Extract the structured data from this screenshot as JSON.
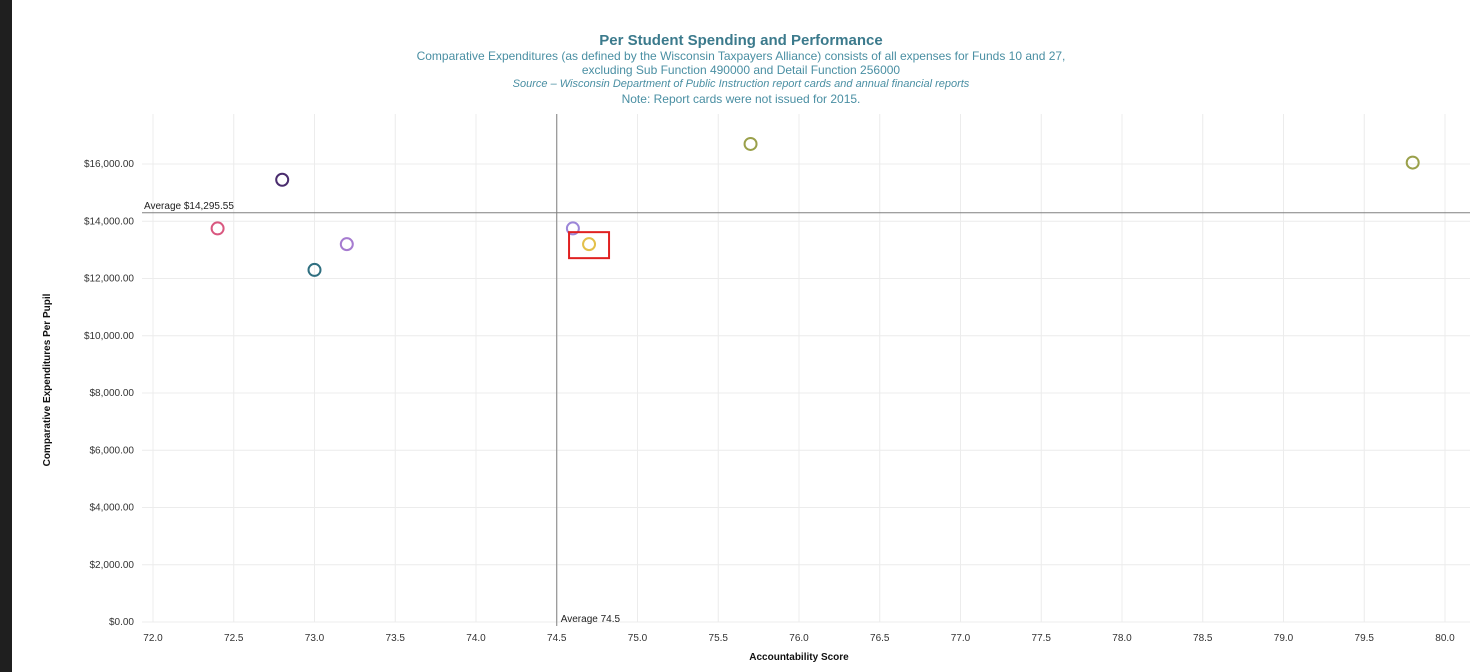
{
  "header": {
    "title": "Per Student Spending and Performance",
    "subtitle_line1": "Comparative Expenditures (as defined by the Wisconsin Taxpayers Alliance) consists of all expenses for Funds 10 and 27,",
    "subtitle_line2": "excluding Sub Function 490000 and Detail Function 256000",
    "source": "Source – Wisconsin Department of Public Instruction report cards and annual financial reports",
    "note": "Note: Report cards were not issued for 2015."
  },
  "chart_data": {
    "type": "scatter",
    "title": "Per Student Spending and Performance",
    "xlabel": "Accountability Score",
    "ylabel": "Comparative Expenditures Per Pupil",
    "xlim": [
      72.0,
      80.0
    ],
    "ylim": [
      0,
      16000
    ],
    "x_ticks": [
      "72.0",
      "72.5",
      "73.0",
      "73.5",
      "74.0",
      "74.5",
      "75.0",
      "75.5",
      "76.0",
      "76.5",
      "77.0",
      "77.5",
      "78.0",
      "78.5",
      "79.0",
      "79.5",
      "80.0"
    ],
    "y_ticks": [
      "$0.00",
      "$2,000.00",
      "$4,000.00",
      "$6,000.00",
      "$8,000.00",
      "$10,000.00",
      "$12,000.00",
      "$14,000.00",
      "$16,000.00"
    ],
    "grid": true,
    "average_lines": {
      "y_value": 14295.55,
      "y_label": "Average $14,295.55",
      "x_value": 74.5,
      "x_label": "Average 74.5"
    },
    "points": [
      {
        "x": 72.4,
        "y": 13750,
        "color": "#d9577f"
      },
      {
        "x": 72.8,
        "y": 15450,
        "color": "#4a2d6e"
      },
      {
        "x": 73.0,
        "y": 12300,
        "color": "#2f6f80"
      },
      {
        "x": 73.2,
        "y": 13200,
        "color": "#a67bd0"
      },
      {
        "x": 74.6,
        "y": 13750,
        "color": "#9c86d8"
      },
      {
        "x": 74.7,
        "y": 13200,
        "color": "#e3c04a",
        "highlighted": true
      },
      {
        "x": 75.7,
        "y": 16700,
        "color": "#9aa04a"
      },
      {
        "x": 79.8,
        "y": 16050,
        "color": "#9aa04a"
      }
    ],
    "highlight_color": "#e02020"
  }
}
